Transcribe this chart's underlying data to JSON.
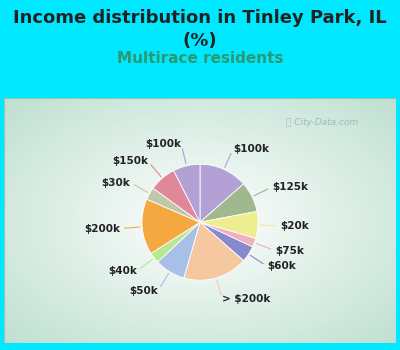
{
  "title_line1": "Income distribution in Tinley Park, IL",
  "title_line2": "(%)",
  "subtitle": "Multirace residents",
  "slices": [
    {
      "label": "$100k",
      "value": 13.5,
      "color": "#b3a0d5"
    },
    {
      "label": "$125k",
      "value": 8.5,
      "color": "#a0b890"
    },
    {
      "label": "$20k",
      "value": 7.5,
      "color": "#eeee90"
    },
    {
      "label": "$75k",
      "value": 2.5,
      "color": "#f0b0bc"
    },
    {
      "label": "$60k",
      "value": 4.5,
      "color": "#8888cc"
    },
    {
      "label": "> $200k",
      "value": 18.0,
      "color": "#f5c8a0"
    },
    {
      "label": "$50k",
      "value": 8.5,
      "color": "#a8c0e8"
    },
    {
      "label": "$40k",
      "value": 3.0,
      "color": "#b8e890"
    },
    {
      "label": "$200k",
      "value": 15.5,
      "color": "#f5a840"
    },
    {
      "label": "$30k",
      "value": 3.5,
      "color": "#c0c8a8"
    },
    {
      "label": "$150k",
      "value": 7.5,
      "color": "#e08898"
    },
    {
      "label": "$100k_b",
      "value": 7.5,
      "color": "#b3a0d5"
    }
  ],
  "display_labels": [
    "$100k",
    "$125k",
    "$20k",
    "$75k",
    "$60k",
    "> $200k",
    "$50k",
    "$40k",
    "$200k",
    "$30k",
    "$150k",
    "$100k"
  ],
  "bg_color": "#00e8ff",
  "panel_gradient_center": "#ffffff",
  "panel_gradient_edge": "#b8dfc8",
  "title_color": "#222222",
  "subtitle_color": "#2a9870",
  "watermark_color": "#a0b8c0",
  "title_fontsize": 13,
  "subtitle_fontsize": 11,
  "label_fontsize": 8
}
